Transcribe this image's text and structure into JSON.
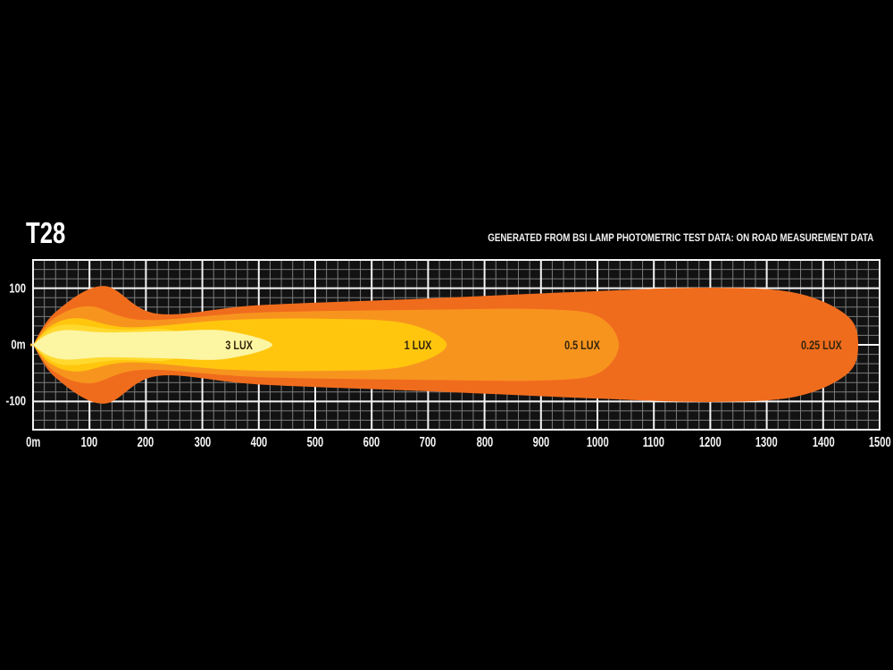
{
  "page": {
    "background": "#000000"
  },
  "header": {
    "title": "T28",
    "note": "GENERATED FROM BSI LAMP PHOTOMETRIC TEST DATA: ON ROAD MEASUREMENT DATA"
  },
  "chart_data": {
    "type": "contour",
    "title": "T28",
    "subtitle": "GENERATED FROM BSI LAMP PHOTOMETRIC TEST DATA: ON ROAD MEASUREMENT DATA",
    "x_axis": {
      "range_m": [
        0,
        1500
      ],
      "major_step_m": 100,
      "minor_step_m": 20,
      "tick_labels": [
        "0m",
        "100",
        "200",
        "300",
        "400",
        "500",
        "600",
        "700",
        "800",
        "900",
        "1000",
        "1100",
        "1200",
        "1300",
        "1400",
        "1500"
      ]
    },
    "y_axis": {
      "range": [
        -150,
        150
      ],
      "major_step": 100,
      "minor_steps_per_major": 6,
      "tick_labels": [
        "100",
        "0m",
        "-100"
      ]
    },
    "grid": {
      "bg": "#121212",
      "minor_color": "#7c7c7c",
      "major_color": "#f4f4f4"
    },
    "lux_label_color": "#34260c",
    "contours": [
      {
        "label": "0.25 LUX",
        "lux": 0.25,
        "color": "#f06c1d",
        "max_distance_m": 1462,
        "label_m": 1397,
        "profile": [
          [
            0,
            0
          ],
          [
            40,
            58
          ],
          [
            125,
            104
          ],
          [
            220,
            55
          ],
          [
            400,
            70
          ],
          [
            700,
            82
          ],
          [
            1000,
            95
          ],
          [
            1200,
            101
          ],
          [
            1350,
            92
          ],
          [
            1442,
            52
          ],
          [
            1462,
            0
          ]
        ]
      },
      {
        "label": "0.5 LUX",
        "lux": 0.5,
        "color": "#f7941e",
        "max_distance_m": 1038,
        "label_m": 973,
        "profile": [
          [
            0,
            0
          ],
          [
            36,
            46
          ],
          [
            100,
            68
          ],
          [
            195,
            44
          ],
          [
            400,
            57
          ],
          [
            700,
            62
          ],
          [
            900,
            63
          ],
          [
            1000,
            51
          ],
          [
            1038,
            0
          ]
        ]
      },
      {
        "label": "1 LUX",
        "lux": 1,
        "color": "#ffc60d",
        "max_distance_m": 733,
        "label_m": 682,
        "profile": [
          [
            0,
            0
          ],
          [
            32,
            34
          ],
          [
            81,
            47
          ],
          [
            172,
            31
          ],
          [
            350,
            44
          ],
          [
            520,
            46
          ],
          [
            660,
            38
          ],
          [
            733,
            0
          ]
        ]
      },
      {
        "label": "",
        "lux": null,
        "color": "#ffd92e",
        "max_distance_m": 310,
        "label_m": null,
        "profile": [
          [
            0,
            0
          ],
          [
            28,
            26
          ],
          [
            65,
            36
          ],
          [
            150,
            27
          ],
          [
            240,
            27
          ],
          [
            310,
            0
          ]
        ]
      },
      {
        "label": "3 LUX",
        "lux": 3,
        "color": "#fcf5a2",
        "max_distance_m": 424,
        "label_m": 365,
        "profile": [
          [
            0,
            0
          ],
          [
            25,
            18
          ],
          [
            60,
            26
          ],
          [
            130,
            22
          ],
          [
            240,
            24
          ],
          [
            340,
            25
          ],
          [
            424,
            0
          ]
        ]
      }
    ]
  }
}
